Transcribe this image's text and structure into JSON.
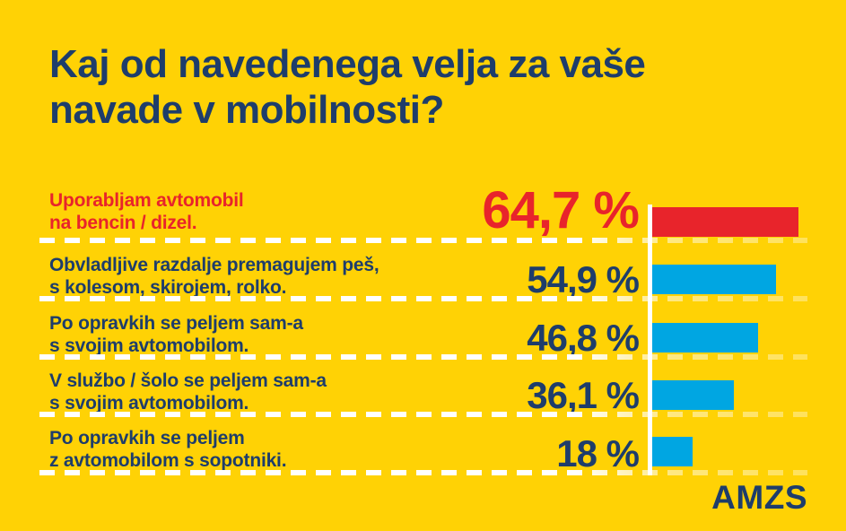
{
  "title": "Kaj od navedenega velja za vaše\nnavade v mobilnosti?",
  "logo_text": "AMZS",
  "colors": {
    "background": "#FFD205",
    "navy": "#1E3D6B",
    "accent_red": "#E8242B",
    "bar_blue": "#00A6E2",
    "bar_highlight": "#E8242B",
    "separator_white": "#FFFFFF"
  },
  "rows": [
    {
      "label": "Uporabljam avtomobil\nna bencin / dizel.",
      "percent": "64,7 %",
      "value": 64.7,
      "highlight": true
    },
    {
      "label": "Obvladljive razdalje premagujem peš,\ns kolesom, skirojem, rolko.",
      "percent": "54,9 %",
      "value": 54.9,
      "highlight": false
    },
    {
      "label": "Po opravkih se peljem sam-a\ns svojim avtomobilom.",
      "percent": "46,8 %",
      "value": 46.8,
      "highlight": false
    },
    {
      "label": "V službo / šolo se peljem sam-a\ns svojim avtomobilom.",
      "percent": "36,1 %",
      "value": 36.1,
      "highlight": false
    },
    {
      "label": "Po opravkih se peljem\nz avtomobilom s sopotniki.",
      "percent": "18 %",
      "value": 18,
      "highlight": false
    }
  ],
  "chart_data": {
    "type": "bar",
    "orientation": "horizontal",
    "title": "Kaj od navedenega velja za vaše navade v mobilnosti?",
    "categories": [
      "Uporabljam avtomobil na bencin / dizel.",
      "Obvladljive razdalje premagujem peš, s kolesom, skirojem, rolko.",
      "Po opravkih se peljem sam-a s svojim avtomobilom.",
      "V službo / šolo se peljem sam-a s svojim avtomobilom.",
      "Po opravkih se peljem z avtomobilom s sopotniki."
    ],
    "values": [
      64.7,
      54.9,
      46.8,
      36.1,
      18
    ],
    "value_labels": [
      "64,7 %",
      "54,9 %",
      "46,8 %",
      "36,1 %",
      "18 %"
    ],
    "unit": "%",
    "xlim": [
      0,
      68
    ],
    "grid": false,
    "legend": false,
    "highlight_index": 0,
    "bar_colors": [
      "#E8242B",
      "#00A6E2",
      "#00A6E2",
      "#00A6E2",
      "#00A6E2"
    ]
  }
}
